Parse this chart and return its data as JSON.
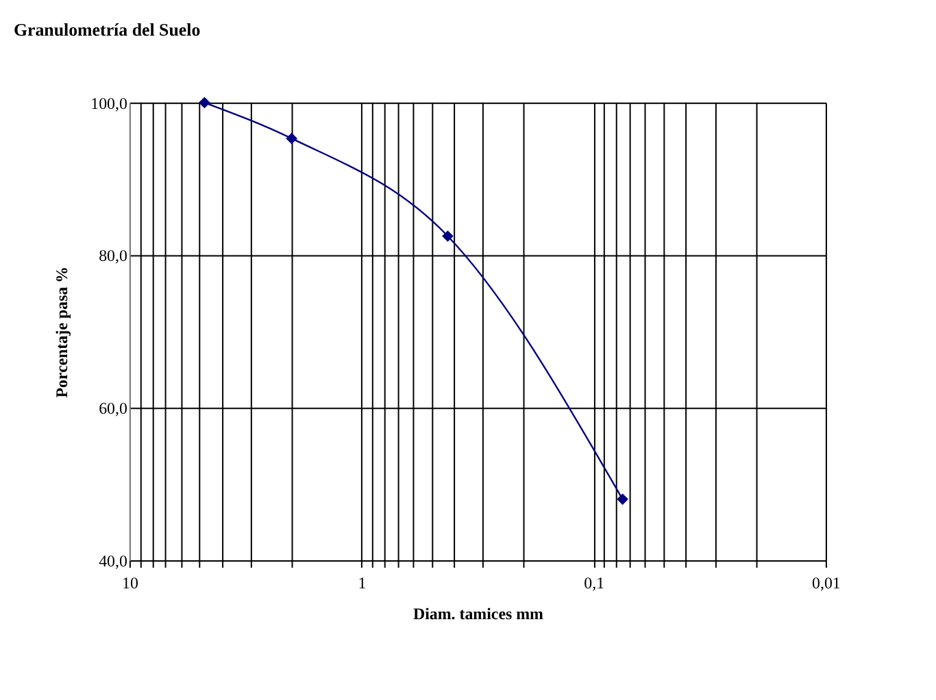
{
  "chart_data": {
    "type": "line",
    "title": "Granulometría  del Suelo",
    "xlabel": "Diam. tamices mm",
    "ylabel": "Porcentaje pasa %",
    "x": [
      4.75,
      2.0,
      0.425,
      0.075
    ],
    "series": [
      {
        "color": "#000080",
        "values": [
          100.0,
          95.3,
          82.5,
          48.0
        ]
      }
    ],
    "log": "x",
    "marker": "diamond",
    "line_style": "solid",
    "grid": true,
    "xlim": [
      10,
      0.01
    ],
    "ylim": [
      40,
      100
    ],
    "xticks": [
      {
        "value": 10,
        "label": "10"
      },
      {
        "value": 9,
        "label": null
      },
      {
        "value": 8,
        "label": null
      },
      {
        "value": 7,
        "label": null
      },
      {
        "value": 6,
        "label": null
      },
      {
        "value": 5,
        "label": null
      },
      {
        "value": 4,
        "label": null
      },
      {
        "value": 3,
        "label": null
      },
      {
        "value": 2,
        "label": null
      },
      {
        "value": 1,
        "label": "1"
      },
      {
        "value": 0.9,
        "label": null
      },
      {
        "value": 0.8,
        "label": null
      },
      {
        "value": 0.7,
        "label": null
      },
      {
        "value": 0.6,
        "label": null
      },
      {
        "value": 0.5,
        "label": null
      },
      {
        "value": 0.4,
        "label": null
      },
      {
        "value": 0.3,
        "label": null
      },
      {
        "value": 0.2,
        "label": null
      },
      {
        "value": 0.1,
        "label": "0,1"
      },
      {
        "value": 0.09,
        "label": null
      },
      {
        "value": 0.08,
        "label": null
      },
      {
        "value": 0.07,
        "label": null
      },
      {
        "value": 0.06,
        "label": null
      },
      {
        "value": 0.05,
        "label": null
      },
      {
        "value": 0.04,
        "label": null
      },
      {
        "value": 0.03,
        "label": null
      },
      {
        "value": 0.02,
        "label": null
      },
      {
        "value": 0.01,
        "label": "0,01"
      }
    ],
    "yticks": [
      {
        "value": 40,
        "label": "40,0"
      },
      {
        "value": 60,
        "label": "60,0"
      },
      {
        "value": 80,
        "label": "80,0"
      },
      {
        "value": 100,
        "label": "100,0"
      }
    ]
  }
}
